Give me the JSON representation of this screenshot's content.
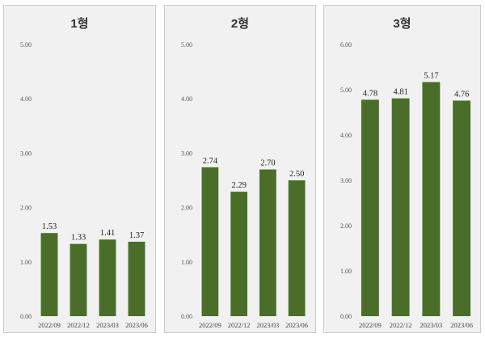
{
  "chart_data": [
    {
      "type": "bar",
      "title": "1형",
      "categories": [
        "2022/09",
        "2022/12",
        "2023/03",
        "2023/06"
      ],
      "values": [
        1.53,
        1.33,
        1.41,
        1.37
      ],
      "data_labels": [
        "1.53",
        "1.33",
        "1.41",
        "1.37"
      ],
      "ylim": [
        0,
        5
      ],
      "yticks": [
        "0.00",
        "1.00",
        "2.00",
        "3.00",
        "4.00",
        "5.00"
      ],
      "grid": false,
      "bar_color": "#4a6e2a"
    },
    {
      "type": "bar",
      "title": "2형",
      "categories": [
        "2022/09",
        "2022/12",
        "2023/03",
        "2023/06"
      ],
      "values": [
        2.74,
        2.29,
        2.7,
        2.5
      ],
      "data_labels": [
        "2.74",
        "2.29",
        "2.70",
        "2.50"
      ],
      "ylim": [
        0,
        5
      ],
      "yticks": [
        "0.00",
        "1.00",
        "2.00",
        "3.00",
        "4.00",
        "5.00"
      ],
      "grid": false,
      "bar_color": "#4a6e2a"
    },
    {
      "type": "bar",
      "title": "3형",
      "categories": [
        "2022/09",
        "2022/12",
        "2023/03",
        "2023/06"
      ],
      "values": [
        4.78,
        4.81,
        5.17,
        4.76
      ],
      "data_labels": [
        "4.78",
        "4.81",
        "5.17",
        "4.76"
      ],
      "ylim": [
        0,
        6
      ],
      "yticks": [
        "0.00",
        "1.00",
        "2.00",
        "3.00",
        "4.00",
        "5.00",
        "6.00"
      ],
      "grid": false,
      "bar_color": "#4a6e2a"
    }
  ]
}
